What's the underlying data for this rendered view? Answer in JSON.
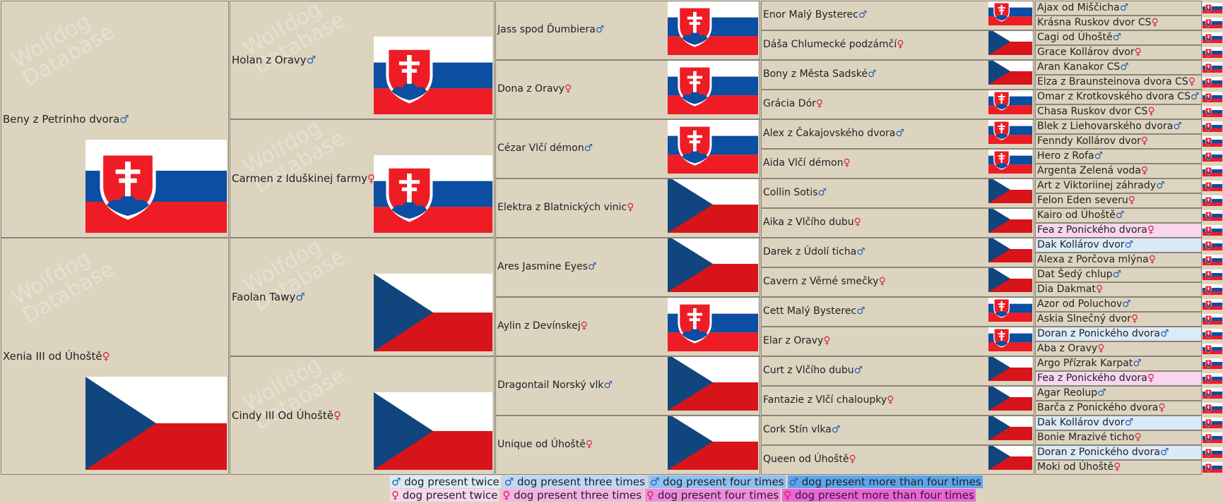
{
  "gen1": [
    {
      "name": "Beny z Petrinho dvora",
      "sex": "m",
      "flag": "sk"
    },
    {
      "name": "Xenia III od Úhoště",
      "sex": "f",
      "flag": "cz"
    }
  ],
  "gen2": [
    {
      "name": "Holan z Oravy",
      "sex": "m",
      "flag": "sk"
    },
    {
      "name": "Carmen z Iduškinej farmy",
      "sex": "f",
      "flag": "sk"
    },
    {
      "name": "Faolan Tawy",
      "sex": "m",
      "flag": "cz"
    },
    {
      "name": "Cindy III Od Úhoště",
      "sex": "f",
      "flag": "cz"
    }
  ],
  "gen3": [
    {
      "name": "Jass spod Ďumbiera",
      "sex": "m",
      "flag": "sk"
    },
    {
      "name": "Dona z Oravy",
      "sex": "f",
      "flag": "sk"
    },
    {
      "name": "Cézar Vlčí démon",
      "sex": "m",
      "flag": "sk"
    },
    {
      "name": "Elektra z Blatnických vinic",
      "sex": "f",
      "flag": "cz"
    },
    {
      "name": "Ares Jasmine Eyes",
      "sex": "m",
      "flag": "cz"
    },
    {
      "name": "Aylin z Devínskej",
      "sex": "f",
      "flag": "sk"
    },
    {
      "name": "Dragontail Norský vlk",
      "sex": "m",
      "flag": "cz"
    },
    {
      "name": "Unique od Úhoště",
      "sex": "f",
      "flag": "cz"
    }
  ],
  "gen4": [
    {
      "name": "Enor Malý Bysterec",
      "sex": "m",
      "flag": "sk"
    },
    {
      "name": "Dáša Chlumecké podzámčí",
      "sex": "f",
      "flag": "cz"
    },
    {
      "name": "Bony z Města Sadské",
      "sex": "m",
      "flag": "cz"
    },
    {
      "name": "Grácia Dór",
      "sex": "f",
      "flag": "sk"
    },
    {
      "name": "Alex z Čakajovského dvora",
      "sex": "m",
      "flag": "sk"
    },
    {
      "name": "Aida Vlčí démon",
      "sex": "f",
      "flag": "sk"
    },
    {
      "name": "Collin Sotis",
      "sex": "m",
      "flag": "cz"
    },
    {
      "name": "Aika z Vlčího dubu",
      "sex": "f",
      "flag": "cz"
    },
    {
      "name": "Darek z Údolí ticha",
      "sex": "m",
      "flag": "cz"
    },
    {
      "name": "Cavern z Věrné smečky",
      "sex": "f",
      "flag": "cz"
    },
    {
      "name": "Cett Malý Bysterec",
      "sex": "m",
      "flag": "sk"
    },
    {
      "name": "Elar z Oravy",
      "sex": "f",
      "flag": "sk"
    },
    {
      "name": "Curt z Vlčího dubu",
      "sex": "m",
      "flag": "cz"
    },
    {
      "name": "Fantazie z Vlčí chaloupky",
      "sex": "f",
      "flag": "cz"
    },
    {
      "name": "Cork Stín vlka",
      "sex": "m",
      "flag": "cz"
    },
    {
      "name": "Queen od Úhoště",
      "sex": "f",
      "flag": "cz"
    }
  ],
  "gen5": [
    {
      "name": "Ajax od Miščicha",
      "sex": "m",
      "flag": "sk",
      "hl": ""
    },
    {
      "name": "Krásna Ruskov dvor CS",
      "sex": "f",
      "flag": "sk",
      "hl": ""
    },
    {
      "name": "Cagi od Úhoště",
      "sex": "m",
      "flag": "sk",
      "hl": ""
    },
    {
      "name": "Grace Kollárov dvor",
      "sex": "f",
      "flag": "sk",
      "hl": ""
    },
    {
      "name": "Aran Kanakor CS",
      "sex": "m",
      "flag": "sk",
      "hl": ""
    },
    {
      "name": "Elza z Braunsteinova dvora CS",
      "sex": "f",
      "flag": "sk",
      "hl": ""
    },
    {
      "name": "Omar z Krotkovského dvora CS",
      "sex": "m",
      "flag": "sk",
      "hl": ""
    },
    {
      "name": "Chasa Ruskov dvor CS",
      "sex": "f",
      "flag": "sk",
      "hl": ""
    },
    {
      "name": "Blek z Liehovarského dvora",
      "sex": "m",
      "flag": "sk",
      "hl": ""
    },
    {
      "name": "Fenndy Kollárov dvor",
      "sex": "f",
      "flag": "sk",
      "hl": ""
    },
    {
      "name": "Hero z Rofa",
      "sex": "m",
      "flag": "sk",
      "hl": ""
    },
    {
      "name": "Argenta Zelená voda",
      "sex": "f",
      "flag": "sk",
      "hl": ""
    },
    {
      "name": "Art z Viktoriinej záhrady",
      "sex": "m",
      "flag": "sk",
      "hl": ""
    },
    {
      "name": "Felon Eden severu",
      "sex": "f",
      "flag": "sk",
      "hl": ""
    },
    {
      "name": "Kairo od Úhoště",
      "sex": "m",
      "flag": "sk",
      "hl": ""
    },
    {
      "name": "Fea z Ponického dvora",
      "sex": "f",
      "flag": "sk",
      "hl": "twice-f"
    },
    {
      "name": "Dak Kollárov dvor",
      "sex": "m",
      "flag": "sk",
      "hl": "twice-m"
    },
    {
      "name": "Alexa z Porčova mlýna",
      "sex": "f",
      "flag": "sk",
      "hl": ""
    },
    {
      "name": "Dat Šedý chlup",
      "sex": "m",
      "flag": "sk",
      "hl": ""
    },
    {
      "name": "Dia Dakmat",
      "sex": "f",
      "flag": "sk",
      "hl": ""
    },
    {
      "name": "Azor od Poluchov",
      "sex": "m",
      "flag": "sk",
      "hl": ""
    },
    {
      "name": "Askia Slnečný dvor",
      "sex": "f",
      "flag": "sk",
      "hl": ""
    },
    {
      "name": "Doran z Ponického dvora",
      "sex": "m",
      "flag": "sk",
      "hl": "twice-m"
    },
    {
      "name": "Aba z Oravy",
      "sex": "f",
      "flag": "sk",
      "hl": ""
    },
    {
      "name": "Argo Přízrak Karpat",
      "sex": "m",
      "flag": "sk",
      "hl": ""
    },
    {
      "name": "Fea z Ponického dvora",
      "sex": "f",
      "flag": "sk",
      "hl": "twice-f"
    },
    {
      "name": "Agar Reolup",
      "sex": "m",
      "flag": "sk",
      "hl": ""
    },
    {
      "name": "Barča z Ponického dvora",
      "sex": "f",
      "flag": "sk",
      "hl": ""
    },
    {
      "name": "Dak Kollárov dvor",
      "sex": "m",
      "flag": "sk",
      "hl": "twice-m"
    },
    {
      "name": "Bonie Mrazivé ticho",
      "sex": "f",
      "flag": "sk",
      "hl": ""
    },
    {
      "name": "Doran z Ponického dvora",
      "sex": "m",
      "flag": "sk",
      "hl": "twice-m"
    },
    {
      "name": "Moki od Úhoště",
      "sex": "f",
      "flag": "sk",
      "hl": ""
    }
  ],
  "symbols": {
    "m": "♂",
    "f": "♀"
  },
  "watermark": {
    "line1": "Wolfdog",
    "line2": "Database"
  },
  "legend": {
    "male": [
      {
        "label": "dog present twice",
        "hl": "twice-m"
      },
      {
        "label": "dog present three times",
        "hl": "three-m"
      },
      {
        "label": "dog present four times",
        "hl": "four-m"
      },
      {
        "label": "dog present more than four times",
        "hl": "more-m"
      }
    ],
    "female": [
      {
        "label": "dog present twice",
        "hl": "twice-f"
      },
      {
        "label": "dog present three times",
        "hl": "three-f"
      },
      {
        "label": "dog present four times",
        "hl": "four-f"
      },
      {
        "label": "dog present more than four times",
        "hl": "more-f"
      }
    ]
  },
  "flag_colors": {
    "white": "#ffffff",
    "blue": "#0b4ea2",
    "red": "#ee1c25",
    "cz_blue": "#11457e",
    "cz_red": "#d7141a"
  }
}
